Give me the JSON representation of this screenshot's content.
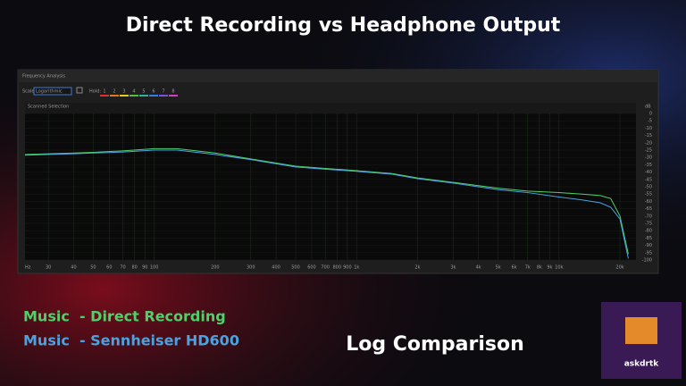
{
  "chart_data": {
    "type": "line",
    "title": "Direct Recording vs Headphone Output",
    "annotation": "Log Comparison",
    "x_label": "Hz",
    "y_label": "dB",
    "xscale": "log",
    "x": [
      23,
      30,
      40,
      50,
      70,
      100,
      130,
      200,
      300,
      500,
      700,
      1000,
      1500,
      2000,
      3000,
      5000,
      7000,
      10000,
      13000,
      16000,
      18000,
      20000,
      22000
    ],
    "series": [
      {
        "name": "Music  - Direct Recording",
        "color": "#4fd06a",
        "values": [
          -28,
          -27.5,
          -27,
          -26.5,
          -25.5,
          -24,
          -24,
          -27,
          -31,
          -36,
          -37.5,
          -39,
          -41,
          -44,
          -47,
          -51,
          -53,
          -54,
          -55,
          -56,
          -58,
          -70,
          -96
        ]
      },
      {
        "name": "Music  - Sennheiser HD600",
        "color": "#4aa3e0",
        "values": [
          -28.5,
          -28,
          -27.5,
          -27,
          -26.3,
          -25,
          -25,
          -28,
          -31.5,
          -36.5,
          -38,
          -39.5,
          -41.5,
          -44.5,
          -47.5,
          -52,
          -54,
          -57,
          -59,
          -61,
          -64,
          -72,
          -99
        ]
      }
    ],
    "xlim": [
      23,
      24000
    ],
    "xticks": [
      30,
      40,
      50,
      60,
      70,
      80,
      90,
      100,
      200,
      300,
      400,
      500,
      600,
      700,
      800,
      900,
      {
        "value": 1000,
        "label": "1k"
      },
      {
        "value": 2000,
        "label": "2k"
      },
      {
        "value": 3000,
        "label": "3k"
      },
      {
        "value": 4000,
        "label": "4k"
      },
      {
        "value": 5000,
        "label": "5k"
      },
      {
        "value": 6000,
        "label": "6k"
      },
      {
        "value": 7000,
        "label": "7k"
      },
      {
        "value": 8000,
        "label": "8k"
      },
      {
        "value": 9000,
        "label": "9k"
      },
      {
        "value": 10000,
        "label": "10k"
      },
      {
        "value": 20000,
        "label": "20k"
      }
    ],
    "ylim": [
      -100,
      0
    ],
    "yticks": [
      0,
      -5,
      -10,
      -15,
      -20,
      -25,
      -30,
      -35,
      -40,
      -45,
      -50,
      -55,
      -60,
      -65,
      -70,
      -75,
      -80,
      -85,
      -90,
      -95,
      -100
    ],
    "grid": true
  },
  "ui": {
    "panel_title": "Frequency Analysis",
    "scale_label": "Scale:",
    "scale_value": "Logarithmic",
    "hold_label": "Hold:",
    "hold_buttons": [
      "1",
      "2",
      "3",
      "4",
      "5",
      "6",
      "7",
      "8"
    ],
    "overlay": "Scanned Selection",
    "logo_text": "askdrtk"
  }
}
